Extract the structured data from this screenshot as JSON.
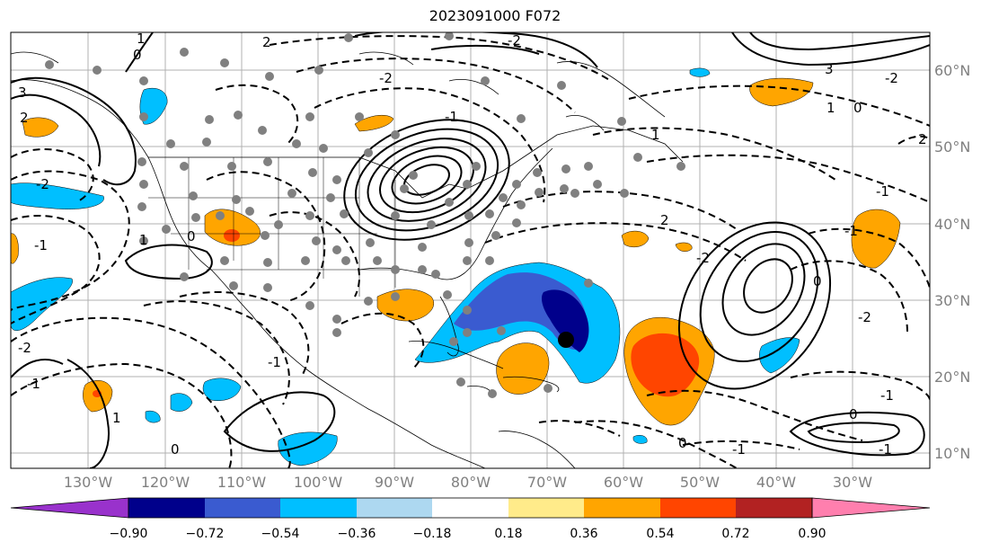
{
  "title": "2023091000 F072",
  "map": {
    "lon_labels": [
      "130°W",
      "120°W",
      "110°W",
      "100°W",
      "90°W",
      "80°W",
      "70°W",
      "60°W",
      "50°W",
      "40°W",
      "30°W"
    ],
    "lat_labels": [
      "60°N",
      "50°N",
      "40°N",
      "30°N",
      "20°N",
      "10°N"
    ],
    "contour_labels": [
      "1",
      "0",
      "-2",
      "2",
      "3",
      "-1",
      "-2",
      "2",
      "-1",
      "0",
      "1",
      "-1",
      "0",
      "-2",
      "-2",
      "-1",
      "1",
      "2",
      "-2",
      "3",
      "-2",
      "-1",
      "0",
      "1",
      "-1",
      "0",
      "-2",
      "-1",
      "-1",
      "0",
      "0",
      "-1",
      "2",
      "1"
    ],
    "colors": {
      "land_outline": "#000000",
      "grid": "#b0b0b0"
    }
  },
  "colorbar": {
    "labels": [
      "−0.90",
      "−0.72",
      "−0.54",
      "−0.36",
      "−0.18",
      "0.18",
      "0.36",
      "0.54",
      "0.72",
      "0.90"
    ],
    "colors": [
      "#9932cc",
      "#00008b",
      "#3a5bd0",
      "#00bfff",
      "#add8f0",
      "#ffffff",
      "#ffeb8a",
      "#ffa500",
      "#ff4500",
      "#b22222",
      "#ff7fae",
      "#ff7fae"
    ]
  }
}
